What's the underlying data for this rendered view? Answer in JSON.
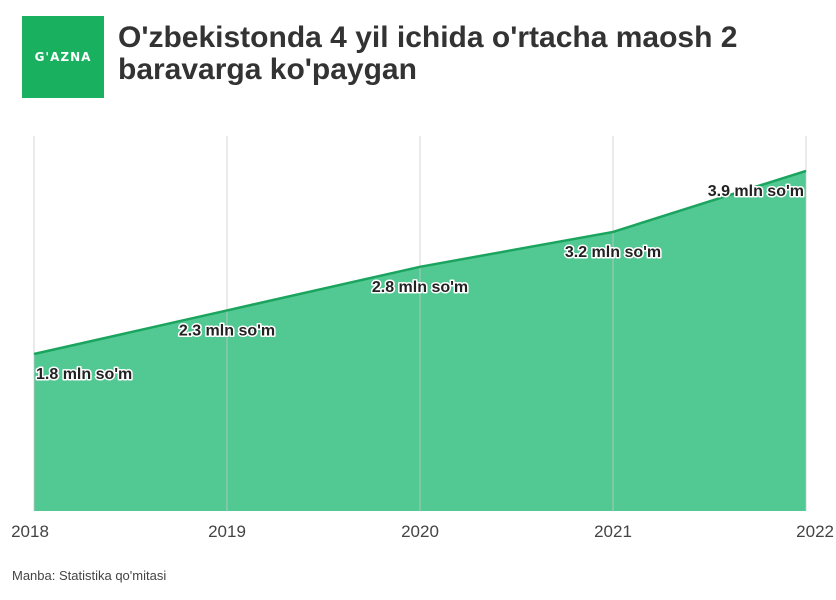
{
  "logo": {
    "text": "G'AZNA"
  },
  "title": "O'zbekistonda 4 yil ichida o'rtacha maosh 2 baravarga ko'paygan",
  "source": "Manba: Statistika qo'mitasi",
  "colors": {
    "brand": "#19b05f",
    "area_fill": "#52c893",
    "line": "#1aa45e",
    "grid": "#c8c8c8"
  },
  "chart_data": {
    "type": "area",
    "title": "O'zbekistonda 4 yil ichida o'rtacha maosh 2 baravarga ko'paygan",
    "xlabel": "",
    "ylabel": "",
    "categories": [
      "2018",
      "2019",
      "2020",
      "2021",
      "2022"
    ],
    "series": [
      {
        "values": [
          1.8,
          2.3,
          2.8,
          3.2,
          3.9
        ],
        "labels": [
          "1.8 mln so'm",
          "2.3 mln so'm",
          "2.8 mln so'm",
          "3.2 mln so'm",
          "3.9 mln so'm"
        ]
      }
    ],
    "ylim": [
      0,
      4.3
    ],
    "grid": "vertical",
    "legend": "none"
  }
}
